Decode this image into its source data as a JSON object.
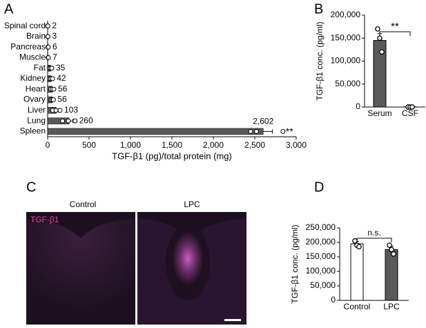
{
  "panels": [
    "A",
    "B",
    "C",
    "D"
  ],
  "images": {
    "labels": [
      "Control",
      "LPC"
    ],
    "stain": "TGF-β1"
  },
  "chart_data": [
    {
      "type": "bar",
      "orientation": "horizontal",
      "categories": [
        "Spinal cord",
        "Brain",
        "Pancreas",
        "Muscle",
        "Fat",
        "Kidney",
        "Heart",
        "Ovary",
        "Liver",
        "Lung",
        "Spleen"
      ],
      "values": [
        2,
        3,
        6,
        7,
        35,
        42,
        56,
        56,
        103,
        260,
        2602
      ],
      "value_labels": [
        "2",
        "3",
        "6",
        "7",
        "35",
        "42",
        "56",
        "56",
        "103",
        "260",
        "2,602"
      ],
      "errors": [
        1,
        1,
        2,
        2,
        8,
        10,
        12,
        12,
        25,
        45,
        110
      ],
      "points": [
        [
          1,
          2,
          3
        ],
        [
          2,
          3,
          4
        ],
        [
          4,
          6,
          8
        ],
        [
          5,
          7,
          9
        ],
        [
          20,
          35,
          50
        ],
        [
          25,
          40,
          60
        ],
        [
          35,
          55,
          75
        ],
        [
          40,
          55,
          70
        ],
        [
          60,
          100,
          150
        ],
        [
          180,
          250,
          330
        ],
        [
          2450,
          2520,
          2840
        ]
      ],
      "colors": [
        "#595959",
        "#595959",
        "#595959",
        "#595959",
        "#595959",
        "#595959",
        "#595959",
        "#595959",
        "#595959",
        "#595959",
        "#595959"
      ],
      "xlim": [
        0,
        3000
      ],
      "xticks": [
        0,
        500,
        {
          "value": 1000,
          "label": "1,000"
        },
        {
          "value": 1500,
          "label": "1,500"
        },
        {
          "value": 2000,
          "label": "2,000"
        },
        {
          "value": 2500,
          "label": "2,500"
        },
        {
          "value": 3000,
          "label": "3,000"
        }
      ],
      "xlabel": "TGF-β1 (pg)/total protein (mg)",
      "annotation": "**"
    },
    {
      "type": "bar",
      "categories": [
        "Serum",
        "CSF"
      ],
      "values": [
        145000,
        500
      ],
      "errors": [
        15000,
        200
      ],
      "points": [
        [
          170000,
          150000,
          120000
        ],
        [
          0,
          0,
          0
        ]
      ],
      "colors": [
        "#595959",
        "#ffffff"
      ],
      "ylim": [
        0,
        200000
      ],
      "yticks": [
        0,
        {
          "value": 50000,
          "label": "50,000"
        },
        {
          "value": 100000,
          "label": "100,000"
        },
        {
          "value": 150000,
          "label": "150,000"
        },
        {
          "value": 200000,
          "label": "200,000"
        }
      ],
      "ylabel": "TGF-β1 conc. (pg/ml)",
      "annotation": "**"
    },
    {
      "type": "bar",
      "categories": [
        "Control",
        "LPC"
      ],
      "values": [
        195000,
        175000
      ],
      "errors": [
        8000,
        12000
      ],
      "points": [
        [
          205000,
          190000,
          185000
        ],
        [
          190000,
          175000,
          160000
        ]
      ],
      "colors": [
        "#ffffff",
        "#595959"
      ],
      "ylim": [
        0,
        250000
      ],
      "yticks": [
        0,
        {
          "value": 50000,
          "label": "50,000"
        },
        {
          "value": 100000,
          "label": "100,000"
        },
        {
          "value": 150000,
          "label": "150,000"
        },
        {
          "value": 200000,
          "label": "200,000"
        },
        {
          "value": 250000,
          "label": "250,000"
        }
      ],
      "ylabel": "TGF-β1 conc. (pg/ml)",
      "annotation": "n.s."
    }
  ]
}
